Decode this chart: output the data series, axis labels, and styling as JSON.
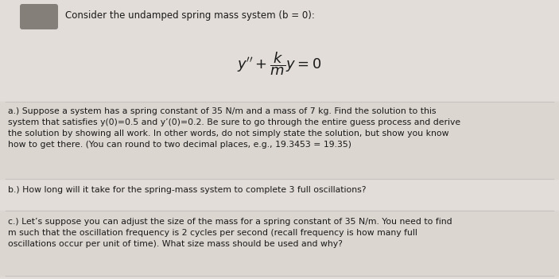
{
  "bg_color": "#e2ddd8",
  "section_bg_a": "#dbd6d0",
  "section_bg_b": "#e2ddd8",
  "section_bg_c": "#dbd6d0",
  "divider_color": "#c8c3be",
  "text_color": "#1a1a1a",
  "header_text": "Consider the undamped spring mass system (b = 0):",
  "font_size_header": 8.5,
  "font_size_eq": 13,
  "font_size_body": 7.8,
  "icon_color": "#857f7a",
  "part_a": "a.) Suppose a system has a spring constant of 35 N/m and a mass of 7 kg. Find the solution to this\nsystem that satisfies y(0)=0.5 and y’(0)=0.2. Be sure to go through the entire guess process and derive\nthe solution by showing all work. In other words, do not simply state the solution, but show you know\nhow to get there. (You can round to two decimal places, e.g., 19.3453 = 19.35)",
  "part_b": "b.) How long will it take for the spring-mass system to complete 3 full oscillations?",
  "part_c": "c.) Let’s suppose you can adjust the size of the mass for a spring constant of 35 N/m. You need to find\nm such that the oscillation frequency is 2 cycles per second (recall frequency is how many full\noscillations occur per unit of time). What size mass should be used and why?"
}
